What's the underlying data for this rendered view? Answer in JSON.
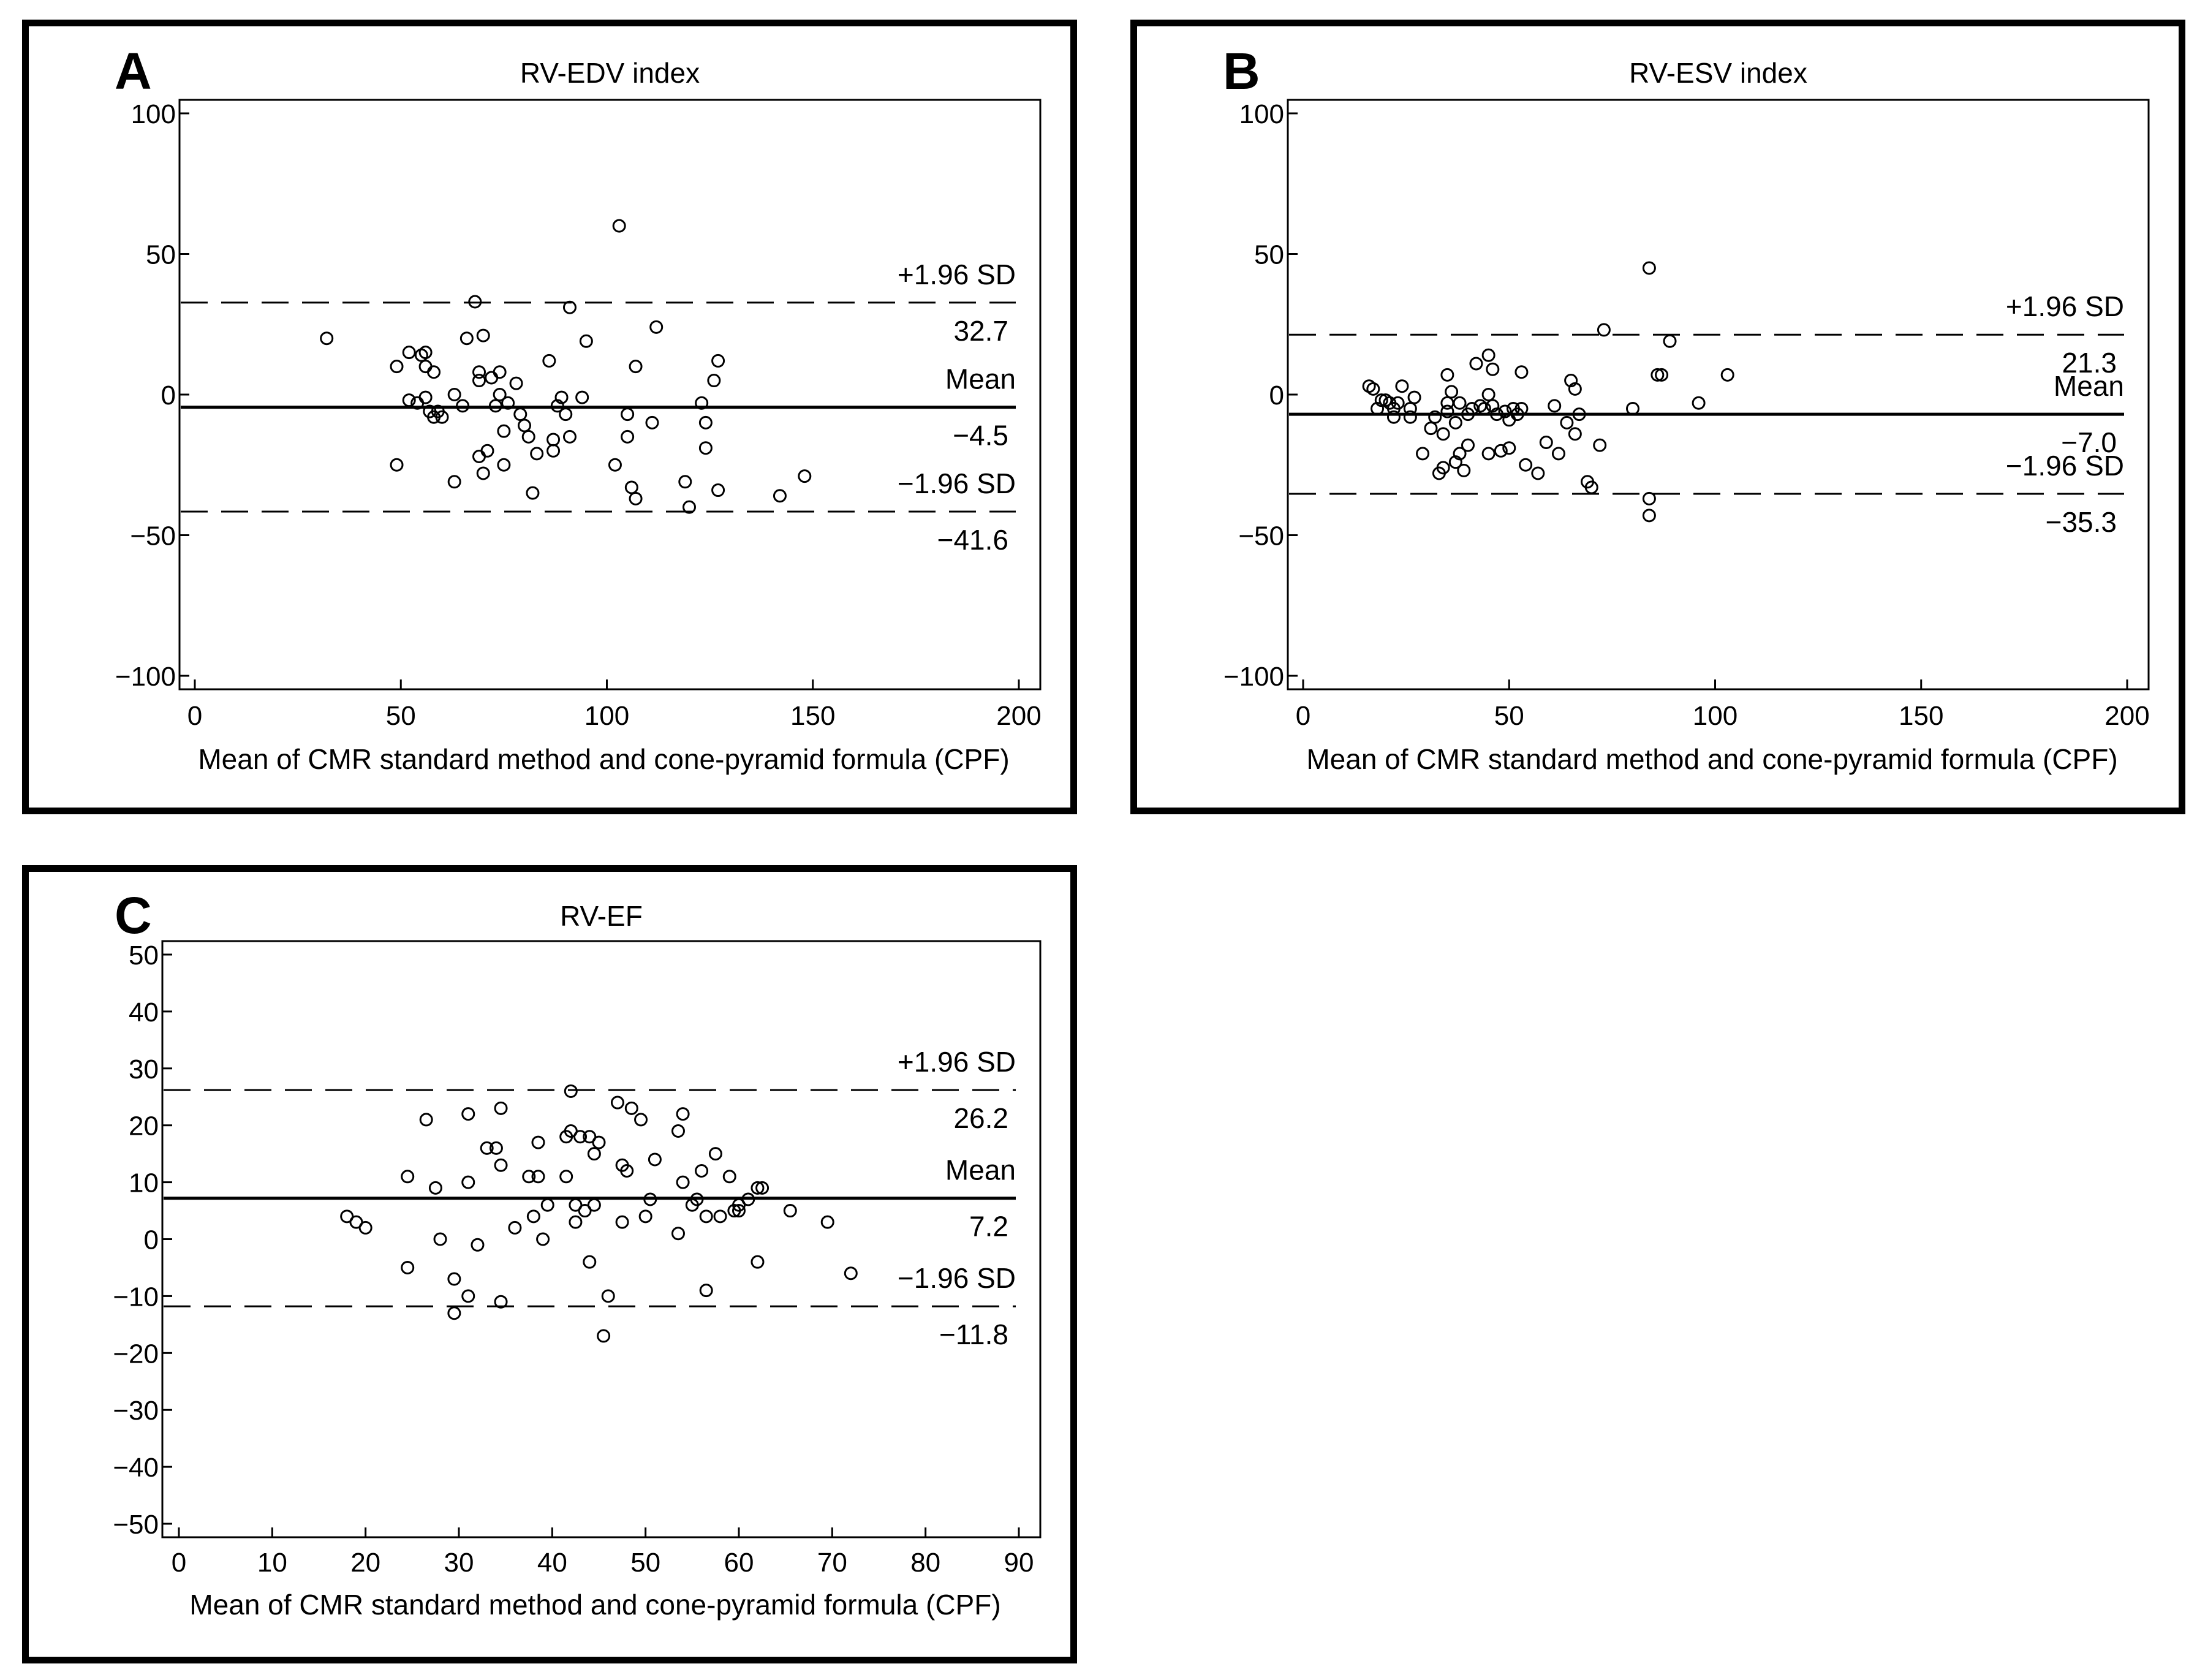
{
  "chart_data": [
    {
      "type": "scatter",
      "panel_letter": "A",
      "title": "RV-EDV index",
      "xlabel": "Mean of CMR standard method and cone-pyramid formula (CPF)",
      "ylabel": "",
      "xlim": [
        0,
        200
      ],
      "ylim": [
        -100,
        100
      ],
      "xticks": [
        0,
        50,
        100,
        150,
        200
      ],
      "yticks": [
        100,
        50,
        0,
        -50,
        -100
      ],
      "xtick_labels": [
        "0",
        "50",
        "100",
        "150",
        "200"
      ],
      "ytick_labels": [
        "100",
        "50",
        "0",
        "−50",
        "−100"
      ],
      "lines": [
        {
          "name": "upper_loa",
          "label": "+1.96 SD",
          "value_label": "32.7",
          "value": 32.7,
          "style": "dashed"
        },
        {
          "name": "mean",
          "label": "Mean",
          "value_label": "−4.5",
          "value": -4.5,
          "style": "solid"
        },
        {
          "name": "lower_loa",
          "label": "−1.96 SD",
          "value_label": "−41.6",
          "value": -41.6,
          "style": "dashed"
        }
      ],
      "points": [
        [
          32,
          20
        ],
        [
          49,
          10
        ],
        [
          49,
          -25
        ],
        [
          52,
          15
        ],
        [
          52,
          -2
        ],
        [
          54,
          -3
        ],
        [
          55,
          14
        ],
        [
          56,
          15
        ],
        [
          56,
          10
        ],
        [
          56,
          -1
        ],
        [
          57,
          -6
        ],
        [
          58,
          -8
        ],
        [
          58,
          8
        ],
        [
          59,
          -6
        ],
        [
          60,
          -8
        ],
        [
          63,
          0
        ],
        [
          63,
          -31
        ],
        [
          65,
          -4
        ],
        [
          66,
          20
        ],
        [
          68,
          33
        ],
        [
          69,
          8
        ],
        [
          69,
          5
        ],
        [
          69,
          -22
        ],
        [
          70,
          21
        ],
        [
          70,
          -28
        ],
        [
          71,
          -20
        ],
        [
          72,
          6
        ],
        [
          73,
          -4
        ],
        [
          74,
          8
        ],
        [
          74,
          0
        ],
        [
          75,
          -13
        ],
        [
          75,
          -25
        ],
        [
          76,
          -3
        ],
        [
          78,
          4
        ],
        [
          79,
          -7
        ],
        [
          80,
          -11
        ],
        [
          81,
          -15
        ],
        [
          82,
          -35
        ],
        [
          83,
          -21
        ],
        [
          86,
          12
        ],
        [
          87,
          -16
        ],
        [
          87,
          -20
        ],
        [
          88,
          -4
        ],
        [
          89,
          -1
        ],
        [
          90,
          -7
        ],
        [
          91,
          -15
        ],
        [
          91,
          31
        ],
        [
          94,
          -1
        ],
        [
          95,
          19
        ],
        [
          102,
          -25
        ],
        [
          103,
          60
        ],
        [
          105,
          -7
        ],
        [
          105,
          -15
        ],
        [
          106,
          -33
        ],
        [
          107,
          -37
        ],
        [
          107,
          10
        ],
        [
          111,
          -10
        ],
        [
          112,
          24
        ],
        [
          119,
          -31
        ],
        [
          120,
          -40
        ],
        [
          123,
          -3
        ],
        [
          124,
          -10
        ],
        [
          124,
          -19
        ],
        [
          126,
          5
        ],
        [
          127,
          12
        ],
        [
          127,
          -34
        ],
        [
          142,
          -36
        ],
        [
          148,
          -29
        ]
      ]
    },
    {
      "type": "scatter",
      "panel_letter": "B",
      "title": "RV-ESV index",
      "xlabel": "Mean of CMR standard method and cone-pyramid formula (CPF)",
      "ylabel": "",
      "xlim": [
        0,
        200
      ],
      "ylim": [
        -100,
        100
      ],
      "xticks": [
        0,
        50,
        100,
        150,
        200
      ],
      "yticks": [
        100,
        50,
        0,
        -50,
        -100
      ],
      "xtick_labels": [
        "0",
        "50",
        "100",
        "150",
        "200"
      ],
      "ytick_labels": [
        "100",
        "50",
        "0",
        "−50",
        "−100"
      ],
      "lines": [
        {
          "name": "upper_loa",
          "label": "+1.96 SD",
          "value_label": "21.3",
          "value": 21.3,
          "style": "dashed"
        },
        {
          "name": "mean",
          "label": "Mean",
          "value_label": "−7.0",
          "value": -7.0,
          "style": "solid"
        },
        {
          "name": "lower_loa",
          "label": "−1.96 SD",
          "value_label": "−35.3",
          "value": -35.3,
          "style": "dashed"
        }
      ],
      "points": [
        [
          16,
          3
        ],
        [
          17,
          2
        ],
        [
          18,
          -5
        ],
        [
          19,
          -2
        ],
        [
          20,
          -2
        ],
        [
          21,
          -3
        ],
        [
          22,
          -5
        ],
        [
          22,
          -8
        ],
        [
          23,
          -3
        ],
        [
          24,
          3
        ],
        [
          26,
          -8
        ],
        [
          26,
          -5
        ],
        [
          27,
          -1
        ],
        [
          29,
          -21
        ],
        [
          31,
          -12
        ],
        [
          32,
          -8
        ],
        [
          33,
          -28
        ],
        [
          34,
          -26
        ],
        [
          34,
          -14
        ],
        [
          35,
          -6
        ],
        [
          35,
          7
        ],
        [
          35,
          -3
        ],
        [
          36,
          1
        ],
        [
          37,
          -24
        ],
        [
          37,
          -10
        ],
        [
          38,
          -21
        ],
        [
          38,
          -3
        ],
        [
          39,
          -27
        ],
        [
          40,
          -18
        ],
        [
          40,
          -7
        ],
        [
          41,
          -5
        ],
        [
          42,
          11
        ],
        [
          43,
          -4
        ],
        [
          44,
          -5
        ],
        [
          45,
          -21
        ],
        [
          45,
          0
        ],
        [
          45,
          14
        ],
        [
          46,
          9
        ],
        [
          46,
          -4
        ],
        [
          47,
          -7
        ],
        [
          48,
          -20
        ],
        [
          49,
          -6
        ],
        [
          50,
          -9
        ],
        [
          50,
          -19
        ],
        [
          51,
          -5
        ],
        [
          52,
          -7
        ],
        [
          53,
          8
        ],
        [
          53,
          -5
        ],
        [
          54,
          -25
        ],
        [
          57,
          -28
        ],
        [
          59,
          -17
        ],
        [
          61,
          -4
        ],
        [
          62,
          -21
        ],
        [
          64,
          -10
        ],
        [
          65,
          5
        ],
        [
          66,
          2
        ],
        [
          66,
          -14
        ],
        [
          67,
          -7
        ],
        [
          69,
          -31
        ],
        [
          70,
          -33
        ],
        [
          72,
          -18
        ],
        [
          73,
          23
        ],
        [
          80,
          -5
        ],
        [
          84,
          -37
        ],
        [
          84,
          -43
        ],
        [
          84,
          45
        ],
        [
          86,
          7
        ],
        [
          87,
          7
        ],
        [
          89,
          19
        ],
        [
          96,
          -3
        ],
        [
          103,
          7
        ]
      ]
    },
    {
      "type": "scatter",
      "panel_letter": "C",
      "title": "RV-EF",
      "xlabel": "Mean of CMR standard method and cone-pyramid formula (CPF)",
      "ylabel": "",
      "xlim": [
        0,
        90
      ],
      "ylim": [
        -50,
        50
      ],
      "xticks": [
        0,
        10,
        20,
        30,
        40,
        50,
        60,
        70,
        80,
        90
      ],
      "yticks": [
        50,
        40,
        30,
        20,
        10,
        0,
        -10,
        -20,
        -30,
        -40,
        -50
      ],
      "xtick_labels": [
        "0",
        "10",
        "20",
        "30",
        "40",
        "50",
        "60",
        "70",
        "80",
        "90"
      ],
      "ytick_labels": [
        "50",
        "40",
        "30",
        "20",
        "10",
        "0",
        "−10",
        "−20",
        "−30",
        "−40",
        "−50"
      ],
      "lines": [
        {
          "name": "upper_loa",
          "label": "+1.96 SD",
          "value_label": "26.2",
          "value": 26.2,
          "style": "dashed"
        },
        {
          "name": "mean",
          "label": "Mean",
          "value_label": "7.2",
          "value": 7.2,
          "style": "solid"
        },
        {
          "name": "lower_loa",
          "label": "−1.96 SD",
          "value_label": "−11.8",
          "value": -11.8,
          "style": "dashed"
        }
      ],
      "points": [
        [
          18,
          4
        ],
        [
          19,
          3
        ],
        [
          20,
          2
        ],
        [
          24.5,
          11
        ],
        [
          24.5,
          -5
        ],
        [
          26.5,
          21
        ],
        [
          27.5,
          9
        ],
        [
          28,
          0
        ],
        [
          29.5,
          -7
        ],
        [
          29.5,
          -13
        ],
        [
          31,
          22
        ],
        [
          31,
          10
        ],
        [
          31,
          -10
        ],
        [
          32,
          -1
        ],
        [
          33,
          16
        ],
        [
          34,
          16
        ],
        [
          34.5,
          13
        ],
        [
          34.5,
          23
        ],
        [
          34.5,
          -11
        ],
        [
          36,
          2
        ],
        [
          37.5,
          11
        ],
        [
          38,
          4
        ],
        [
          38.5,
          17
        ],
        [
          38.5,
          11
        ],
        [
          39,
          0
        ],
        [
          39.5,
          6
        ],
        [
          41.5,
          11
        ],
        [
          41.5,
          18
        ],
        [
          42,
          26
        ],
        [
          42,
          19
        ],
        [
          42.5,
          6
        ],
        [
          42.5,
          3
        ],
        [
          43,
          18
        ],
        [
          43.5,
          5
        ],
        [
          44,
          18
        ],
        [
          44,
          -4
        ],
        [
          44.5,
          6
        ],
        [
          44.5,
          15
        ],
        [
          45,
          17
        ],
        [
          45.5,
          -17
        ],
        [
          46,
          -10
        ],
        [
          47,
          24
        ],
        [
          47.5,
          13
        ],
        [
          47.5,
          3
        ],
        [
          48,
          12
        ],
        [
          48.5,
          23
        ],
        [
          49.5,
          21
        ],
        [
          50,
          4
        ],
        [
          50.5,
          7
        ],
        [
          51,
          14
        ],
        [
          53.5,
          1
        ],
        [
          53.5,
          19
        ],
        [
          54,
          22
        ],
        [
          54,
          10
        ],
        [
          55,
          6
        ],
        [
          55.5,
          7
        ],
        [
          56,
          12
        ],
        [
          56.5,
          -9
        ],
        [
          56.5,
          4
        ],
        [
          57.5,
          15
        ],
        [
          58,
          4
        ],
        [
          59,
          11
        ],
        [
          59.5,
          5
        ],
        [
          60,
          5
        ],
        [
          60,
          6
        ],
        [
          61,
          7
        ],
        [
          62,
          9
        ],
        [
          62,
          -4
        ],
        [
          62.5,
          9
        ],
        [
          65.5,
          5
        ],
        [
          69.5,
          3
        ],
        [
          72,
          -6
        ]
      ]
    }
  ]
}
